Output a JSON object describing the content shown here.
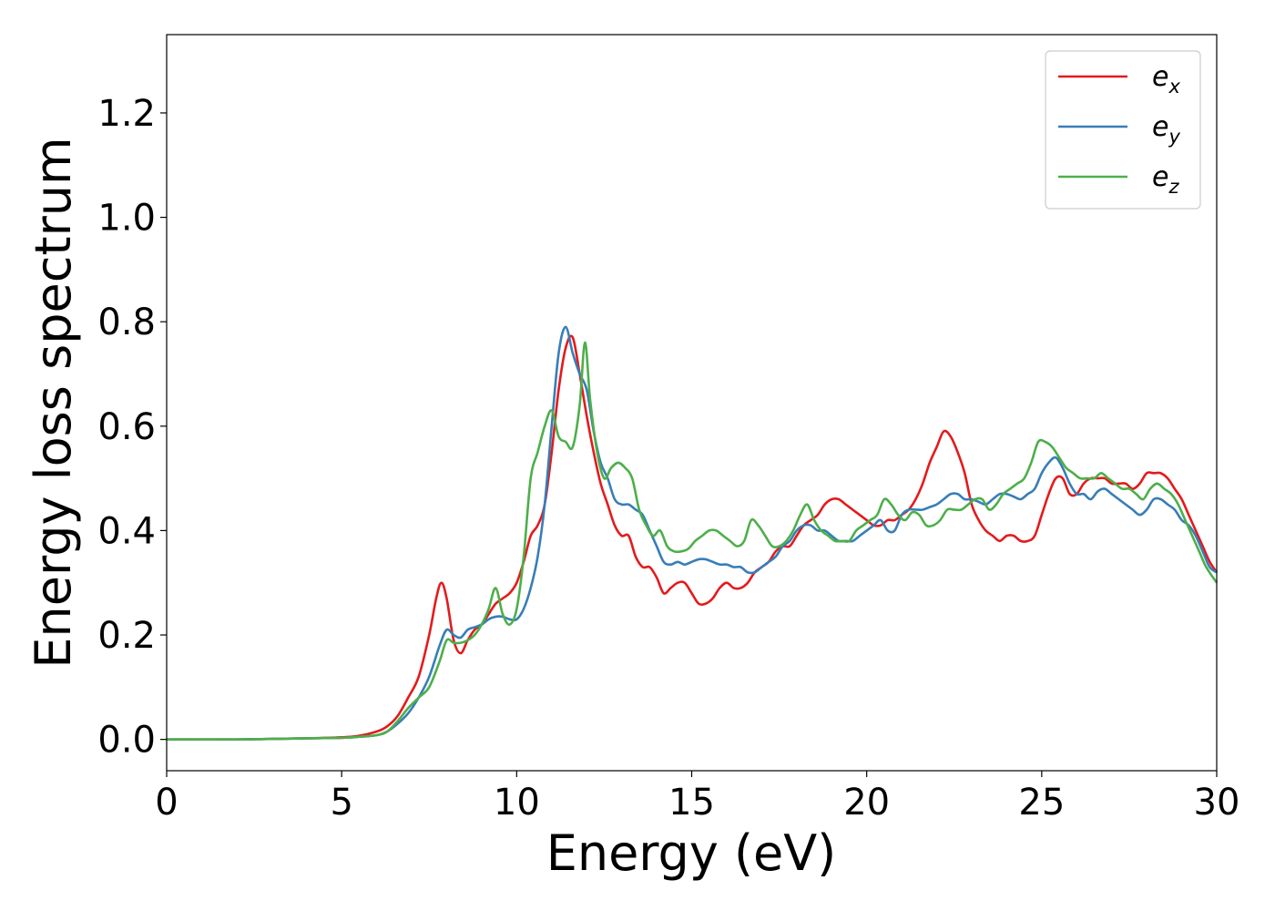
{
  "chart_data": {
    "type": "line",
    "xlabel": "Energy (eV)",
    "ylabel": "Energy loss spectrum",
    "xlim": [
      0,
      30
    ],
    "ylim": [
      -0.06,
      1.35
    ],
    "xticks": [
      0,
      5,
      10,
      15,
      20,
      25,
      30
    ],
    "xtick_labels": [
      "0",
      "5",
      "10",
      "15",
      "20",
      "25",
      "30"
    ],
    "yticks": [
      0.0,
      0.2,
      0.4,
      0.6,
      0.8,
      1.0,
      1.2
    ],
    "ytick_labels": [
      "0.0",
      "0.2",
      "0.4",
      "0.6",
      "0.8",
      "1.0",
      "1.2"
    ],
    "grid": false,
    "legend_position": "top-right",
    "series": [
      {
        "name": "e_x",
        "base": "e",
        "sub": "x",
        "color": "#e41a1c",
        "x": [
          0,
          2,
          4,
          5,
          5.5,
          6,
          6.3,
          6.6,
          6.9,
          7.2,
          7.5,
          7.7,
          7.85,
          8.0,
          8.2,
          8.4,
          8.6,
          8.8,
          9.0,
          9.2,
          9.4,
          9.6,
          9.8,
          10.0,
          10.2,
          10.4,
          10.6,
          10.8,
          11.0,
          11.2,
          11.4,
          11.6,
          11.8,
          12.0,
          12.2,
          12.4,
          12.6,
          12.8,
          13.0,
          13.2,
          13.4,
          13.6,
          13.8,
          14.0,
          14.2,
          14.4,
          14.6,
          14.8,
          15.0,
          15.2,
          15.4,
          15.6,
          15.8,
          16.0,
          16.2,
          16.4,
          16.6,
          16.8,
          17.0,
          17.2,
          17.4,
          17.6,
          17.8,
          18.0,
          18.2,
          18.4,
          18.6,
          18.8,
          19.0,
          19.2,
          19.4,
          19.6,
          19.8,
          20.0,
          20.2,
          20.4,
          20.6,
          20.8,
          21.0,
          21.2,
          21.4,
          21.6,
          21.8,
          22.0,
          22.2,
          22.4,
          22.6,
          22.8,
          23.0,
          23.2,
          23.4,
          23.6,
          23.8,
          24.0,
          24.2,
          24.4,
          24.6,
          24.8,
          25.0,
          25.2,
          25.4,
          25.6,
          25.8,
          26.0,
          26.2,
          26.4,
          26.6,
          26.8,
          27.0,
          27.2,
          27.4,
          27.6,
          27.8,
          28.0,
          28.2,
          28.4,
          28.6,
          28.8,
          29.0,
          29.2,
          29.4,
          29.6,
          29.8,
          30.0
        ],
        "y": [
          0.0,
          0.0,
          0.002,
          0.004,
          0.007,
          0.015,
          0.025,
          0.045,
          0.08,
          0.12,
          0.2,
          0.27,
          0.3,
          0.27,
          0.19,
          0.165,
          0.19,
          0.21,
          0.22,
          0.24,
          0.26,
          0.27,
          0.28,
          0.3,
          0.34,
          0.39,
          0.41,
          0.45,
          0.55,
          0.67,
          0.75,
          0.77,
          0.7,
          0.62,
          0.55,
          0.49,
          0.45,
          0.41,
          0.39,
          0.39,
          0.35,
          0.33,
          0.33,
          0.31,
          0.28,
          0.29,
          0.3,
          0.3,
          0.28,
          0.26,
          0.26,
          0.27,
          0.29,
          0.3,
          0.29,
          0.29,
          0.3,
          0.32,
          0.33,
          0.34,
          0.36,
          0.37,
          0.37,
          0.39,
          0.41,
          0.42,
          0.43,
          0.45,
          0.46,
          0.46,
          0.45,
          0.44,
          0.43,
          0.42,
          0.41,
          0.41,
          0.42,
          0.42,
          0.43,
          0.44,
          0.46,
          0.49,
          0.53,
          0.56,
          0.59,
          0.58,
          0.55,
          0.51,
          0.45,
          0.42,
          0.4,
          0.39,
          0.38,
          0.39,
          0.39,
          0.38,
          0.38,
          0.39,
          0.43,
          0.47,
          0.5,
          0.5,
          0.47,
          0.47,
          0.49,
          0.5,
          0.5,
          0.5,
          0.49,
          0.49,
          0.49,
          0.48,
          0.49,
          0.51,
          0.51,
          0.51,
          0.5,
          0.48,
          0.46,
          0.43,
          0.4,
          0.37,
          0.34,
          0.32
        ]
      },
      {
        "name": "e_y",
        "base": "e",
        "sub": "y",
        "color": "#377eb8",
        "x": [
          0,
          2,
          4,
          5,
          5.5,
          6,
          6.3,
          6.6,
          6.9,
          7.2,
          7.5,
          7.8,
          8.0,
          8.2,
          8.4,
          8.6,
          8.8,
          9.0,
          9.2,
          9.4,
          9.6,
          9.8,
          10.0,
          10.2,
          10.4,
          10.6,
          10.8,
          11.0,
          11.2,
          11.4,
          11.6,
          11.8,
          12.0,
          12.2,
          12.4,
          12.6,
          12.8,
          13.0,
          13.2,
          13.4,
          13.6,
          13.8,
          14.0,
          14.2,
          14.4,
          14.6,
          14.8,
          15.0,
          15.2,
          15.4,
          15.6,
          15.8,
          16.0,
          16.2,
          16.4,
          16.6,
          16.8,
          17.0,
          17.2,
          17.4,
          17.6,
          17.8,
          18.0,
          18.2,
          18.4,
          18.6,
          18.8,
          19.0,
          19.2,
          19.4,
          19.6,
          19.8,
          20.0,
          20.2,
          20.4,
          20.6,
          20.8,
          21.0,
          21.2,
          21.4,
          21.6,
          21.8,
          22.0,
          22.2,
          22.4,
          22.6,
          22.8,
          23.0,
          23.2,
          23.4,
          23.6,
          23.8,
          24.0,
          24.2,
          24.4,
          24.6,
          24.8,
          25.0,
          25.2,
          25.4,
          25.6,
          25.8,
          26.0,
          26.2,
          26.4,
          26.6,
          26.8,
          27.0,
          27.2,
          27.4,
          27.6,
          27.8,
          28.0,
          28.2,
          28.4,
          28.6,
          28.8,
          29.0,
          29.2,
          29.4,
          29.6,
          29.8,
          30.0
        ],
        "y": [
          0.0,
          0.0,
          0.002,
          0.003,
          0.005,
          0.008,
          0.015,
          0.03,
          0.05,
          0.08,
          0.12,
          0.18,
          0.21,
          0.2,
          0.195,
          0.21,
          0.215,
          0.22,
          0.23,
          0.235,
          0.235,
          0.23,
          0.23,
          0.25,
          0.29,
          0.35,
          0.45,
          0.6,
          0.74,
          0.79,
          0.74,
          0.7,
          0.67,
          0.59,
          0.53,
          0.5,
          0.46,
          0.45,
          0.45,
          0.44,
          0.43,
          0.4,
          0.37,
          0.34,
          0.335,
          0.34,
          0.335,
          0.34,
          0.345,
          0.345,
          0.34,
          0.335,
          0.335,
          0.33,
          0.33,
          0.32,
          0.32,
          0.33,
          0.34,
          0.35,
          0.37,
          0.38,
          0.4,
          0.41,
          0.41,
          0.4,
          0.4,
          0.39,
          0.38,
          0.38,
          0.38,
          0.39,
          0.4,
          0.41,
          0.42,
          0.4,
          0.4,
          0.43,
          0.44,
          0.44,
          0.44,
          0.445,
          0.45,
          0.46,
          0.47,
          0.47,
          0.46,
          0.46,
          0.455,
          0.45,
          0.46,
          0.47,
          0.47,
          0.465,
          0.46,
          0.47,
          0.48,
          0.51,
          0.53,
          0.54,
          0.52,
          0.49,
          0.47,
          0.47,
          0.46,
          0.475,
          0.48,
          0.47,
          0.46,
          0.45,
          0.44,
          0.43,
          0.44,
          0.46,
          0.46,
          0.45,
          0.44,
          0.42,
          0.41,
          0.39,
          0.36,
          0.33,
          0.32
        ]
      },
      {
        "name": "e_z",
        "base": "e",
        "sub": "z",
        "color": "#4daf4a",
        "x": [
          0,
          2,
          4,
          5,
          5.5,
          6,
          6.3,
          6.6,
          6.9,
          7.2,
          7.5,
          7.8,
          8.0,
          8.2,
          8.4,
          8.6,
          8.8,
          9.0,
          9.2,
          9.4,
          9.6,
          9.8,
          10.0,
          10.2,
          10.4,
          10.6,
          10.8,
          11.0,
          11.2,
          11.4,
          11.6,
          11.8,
          11.95,
          12.1,
          12.3,
          12.5,
          12.7,
          12.9,
          13.1,
          13.3,
          13.5,
          13.7,
          13.9,
          14.1,
          14.3,
          14.5,
          14.7,
          14.9,
          15.1,
          15.3,
          15.5,
          15.7,
          15.9,
          16.1,
          16.3,
          16.5,
          16.7,
          16.9,
          17.1,
          17.3,
          17.5,
          17.7,
          17.9,
          18.1,
          18.3,
          18.5,
          18.7,
          18.9,
          19.1,
          19.3,
          19.5,
          19.7,
          19.9,
          20.1,
          20.3,
          20.5,
          20.7,
          20.9,
          21.1,
          21.3,
          21.5,
          21.7,
          21.9,
          22.1,
          22.3,
          22.5,
          22.7,
          22.9,
          23.1,
          23.3,
          23.5,
          23.7,
          23.9,
          24.1,
          24.3,
          24.5,
          24.7,
          24.9,
          25.1,
          25.3,
          25.5,
          25.7,
          25.9,
          26.1,
          26.3,
          26.5,
          26.7,
          26.9,
          27.1,
          27.3,
          27.5,
          27.7,
          27.9,
          28.1,
          28.3,
          28.5,
          28.7,
          28.9,
          29.1,
          29.3,
          29.5,
          29.7,
          30.0
        ],
        "y": [
          0.0,
          0.0,
          0.002,
          0.003,
          0.005,
          0.008,
          0.015,
          0.035,
          0.06,
          0.08,
          0.1,
          0.15,
          0.19,
          0.185,
          0.185,
          0.19,
          0.2,
          0.22,
          0.25,
          0.29,
          0.24,
          0.22,
          0.25,
          0.35,
          0.5,
          0.55,
          0.6,
          0.63,
          0.58,
          0.57,
          0.56,
          0.64,
          0.76,
          0.65,
          0.55,
          0.5,
          0.52,
          0.53,
          0.52,
          0.5,
          0.44,
          0.41,
          0.39,
          0.4,
          0.37,
          0.36,
          0.36,
          0.365,
          0.38,
          0.39,
          0.4,
          0.4,
          0.39,
          0.38,
          0.37,
          0.38,
          0.42,
          0.41,
          0.39,
          0.37,
          0.37,
          0.38,
          0.4,
          0.43,
          0.45,
          0.42,
          0.4,
          0.39,
          0.38,
          0.38,
          0.38,
          0.4,
          0.41,
          0.42,
          0.43,
          0.46,
          0.45,
          0.43,
          0.42,
          0.435,
          0.43,
          0.41,
          0.41,
          0.42,
          0.44,
          0.44,
          0.44,
          0.45,
          0.46,
          0.46,
          0.44,
          0.45,
          0.47,
          0.48,
          0.49,
          0.5,
          0.53,
          0.57,
          0.57,
          0.56,
          0.54,
          0.52,
          0.51,
          0.5,
          0.5,
          0.5,
          0.51,
          0.5,
          0.49,
          0.48,
          0.48,
          0.47,
          0.46,
          0.48,
          0.49,
          0.48,
          0.47,
          0.45,
          0.42,
          0.39,
          0.36,
          0.33,
          0.3
        ]
      }
    ]
  }
}
